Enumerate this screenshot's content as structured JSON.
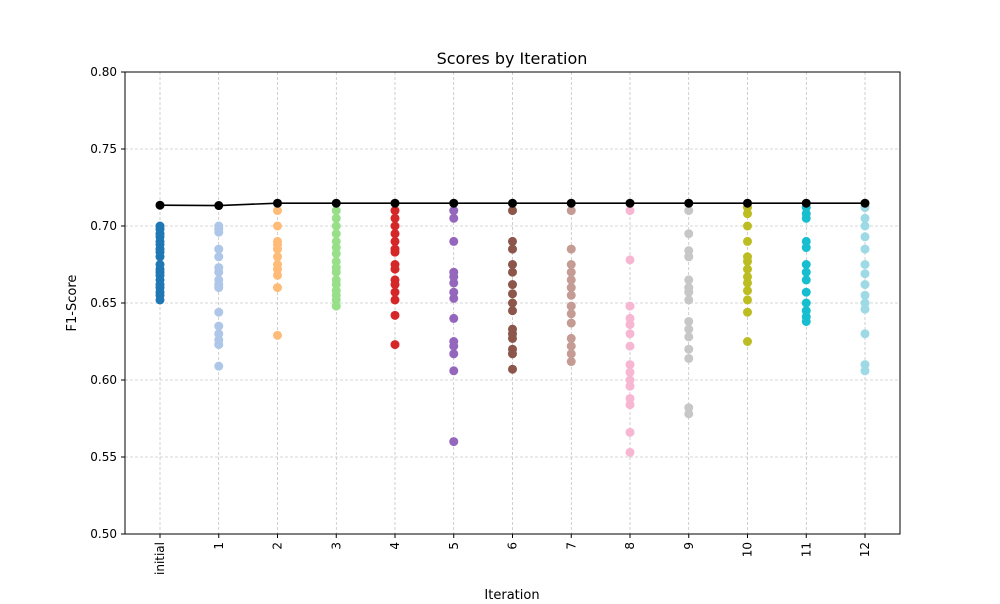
{
  "chart_data": {
    "type": "scatter",
    "title": "Scores by Iteration",
    "xlabel": "Iteration",
    "ylabel": "F1-Score",
    "ylim": [
      0.5,
      0.8
    ],
    "yticks": [
      "0.50",
      "0.55",
      "0.60",
      "0.65",
      "0.70",
      "0.75",
      "0.80"
    ],
    "grid": true,
    "categories": [
      "initial",
      "1",
      "2",
      "3",
      "4",
      "5",
      "6",
      "7",
      "8",
      "9",
      "10",
      "11",
      "12"
    ],
    "colors": [
      "#1f77b4",
      "#aec7e8",
      "#ffbb78",
      "#98df8a",
      "#d62728",
      "#9467bd",
      "#8c564b",
      "#c49c94",
      "#f7b6d2",
      "#c7c7c7",
      "#bcbd22",
      "#17becf",
      "#9edae5"
    ],
    "best_line": {
      "color": "#000000",
      "values": [
        0.7135,
        0.7133,
        0.7148,
        0.7148,
        0.7148,
        0.7148,
        0.7148,
        0.7148,
        0.7148,
        0.7148,
        0.7148,
        0.7148,
        0.7148
      ]
    },
    "points": [
      [
        0.7,
        0.698,
        0.695,
        0.693,
        0.69,
        0.688,
        0.685,
        0.683,
        0.68,
        0.675,
        0.672,
        0.67,
        0.668,
        0.665,
        0.662,
        0.66,
        0.657,
        0.655,
        0.652
      ],
      [
        0.7,
        0.698,
        0.696,
        0.685,
        0.68,
        0.673,
        0.67,
        0.665,
        0.662,
        0.66,
        0.644,
        0.635,
        0.63,
        0.626,
        0.623,
        0.609
      ],
      [
        0.71,
        0.7,
        0.69,
        0.688,
        0.685,
        0.68,
        0.675,
        0.672,
        0.668,
        0.66,
        0.629
      ],
      [
        0.71,
        0.705,
        0.7,
        0.695,
        0.69,
        0.686,
        0.682,
        0.677,
        0.673,
        0.67,
        0.665,
        0.662,
        0.658,
        0.655,
        0.652,
        0.648
      ],
      [
        0.71,
        0.705,
        0.7,
        0.695,
        0.69,
        0.685,
        0.683,
        0.675,
        0.672,
        0.665,
        0.662,
        0.657,
        0.652,
        0.642,
        0.623
      ],
      [
        0.71,
        0.705,
        0.69,
        0.67,
        0.667,
        0.663,
        0.657,
        0.653,
        0.64,
        0.625,
        0.622,
        0.617,
        0.606,
        0.56
      ],
      [
        0.71,
        0.69,
        0.685,
        0.675,
        0.67,
        0.662,
        0.656,
        0.65,
        0.645,
        0.633,
        0.63,
        0.627,
        0.62,
        0.617,
        0.607
      ],
      [
        0.71,
        0.685,
        0.675,
        0.67,
        0.665,
        0.66,
        0.655,
        0.648,
        0.643,
        0.637,
        0.627,
        0.622,
        0.617,
        0.612
      ],
      [
        0.71,
        0.678,
        0.648,
        0.64,
        0.636,
        0.63,
        0.622,
        0.61,
        0.605,
        0.6,
        0.596,
        0.588,
        0.584,
        0.566,
        0.553
      ],
      [
        0.71,
        0.695,
        0.684,
        0.68,
        0.665,
        0.66,
        0.657,
        0.652,
        0.638,
        0.633,
        0.628,
        0.62,
        0.614,
        0.582,
        0.578
      ],
      [
        0.712,
        0.708,
        0.7,
        0.69,
        0.68,
        0.677,
        0.672,
        0.667,
        0.663,
        0.658,
        0.652,
        0.644,
        0.625
      ],
      [
        0.712,
        0.708,
        0.705,
        0.69,
        0.686,
        0.675,
        0.67,
        0.665,
        0.657,
        0.65,
        0.645,
        0.641,
        0.638
      ],
      [
        0.712,
        0.705,
        0.7,
        0.693,
        0.685,
        0.675,
        0.669,
        0.662,
        0.655,
        0.65,
        0.646,
        0.63,
        0.61,
        0.606
      ]
    ]
  }
}
